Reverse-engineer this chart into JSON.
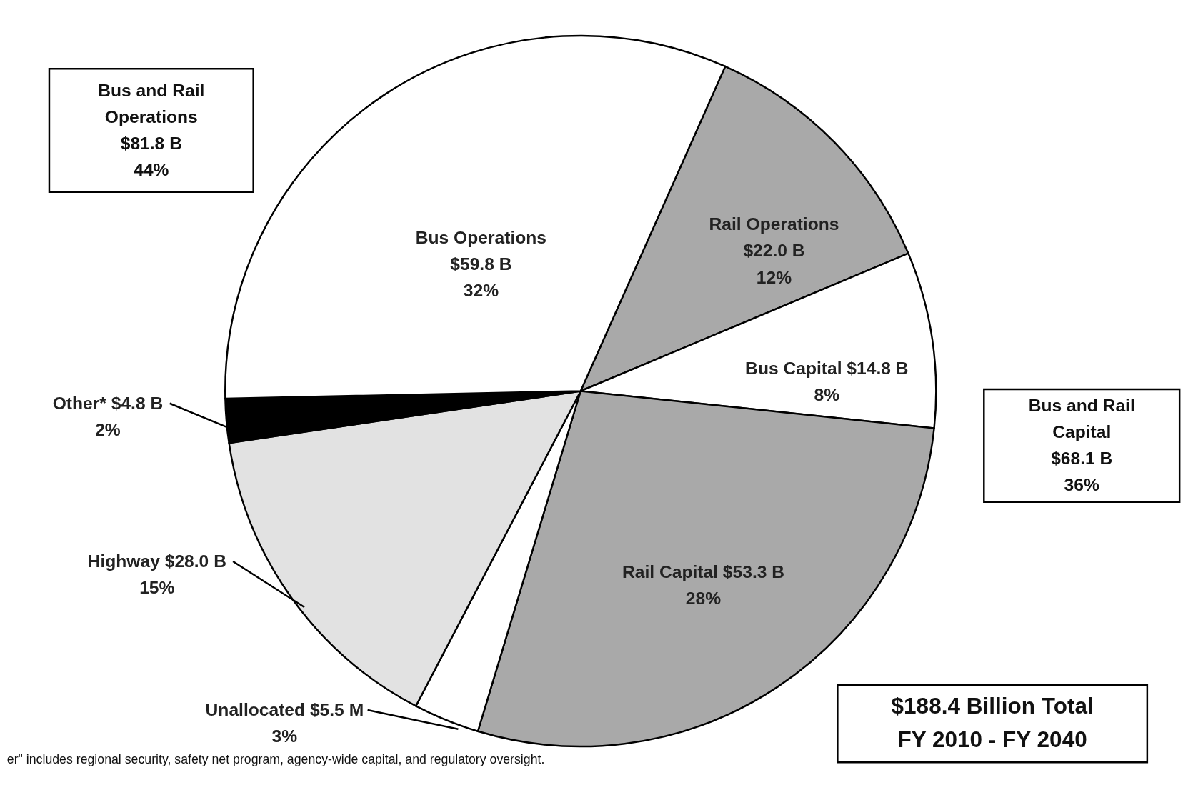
{
  "chart_data": {
    "type": "pie",
    "categories": [
      "Rail Operations",
      "Bus Capital",
      "Rail Capital",
      "Unallocated",
      "Highway",
      "Other*",
      "Bus Operations"
    ],
    "values": [
      12,
      8,
      28,
      3,
      15,
      2,
      32
    ],
    "value_labels": [
      "$22.0 B\n12%",
      "$14.8 B\n8%",
      "$53.3 B\n28%",
      "$5.5 M\n3%",
      "$28.0 B\n15%",
      "$4.8 B\n2%",
      "$59.8 B\n32%"
    ],
    "colors": [
      "#a9a9a9",
      "#ffffff",
      "#a9a9a9",
      "#ffffff",
      "#e2e2e2",
      "#000000",
      "#ffffff"
    ],
    "annotations": [
      "Bus and Rail\nOperations\n$81.8 B\n44%",
      "Bus and Rail\nCapital\n$68.1 B\n36%",
      "$188.4 Billion Total\nFY 2010 - FY 2040",
      "er\" includes regional security, safety net program, agency-wide capital, and regulatory oversight."
    ]
  }
}
